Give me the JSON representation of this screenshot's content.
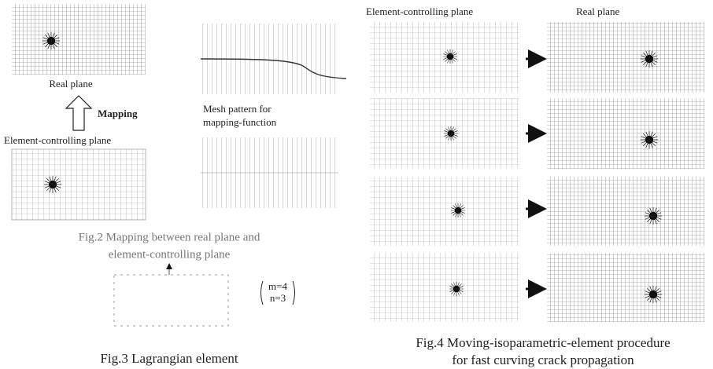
{
  "fig2": {
    "real_plane_label": "Real plane",
    "mapping_label": "Mapping",
    "element_plane_label": "Element-controlling plane",
    "mesh_pattern_label": [
      "Mesh pattern for",
      "mapping-function"
    ],
    "caption": [
      "Fig.2 Mapping between real plane and",
      "element-controlling plane"
    ]
  },
  "fig3": {
    "params": [
      "m=4",
      "n=3"
    ],
    "caption": "Fig.3 Lagrangian element"
  },
  "fig4": {
    "headers": [
      "Element-controlling plane",
      "Real  plane"
    ],
    "caption": [
      "Fig.4 Moving-isoparametric-element procedure",
      "for fast curving crack propagation"
    ]
  }
}
